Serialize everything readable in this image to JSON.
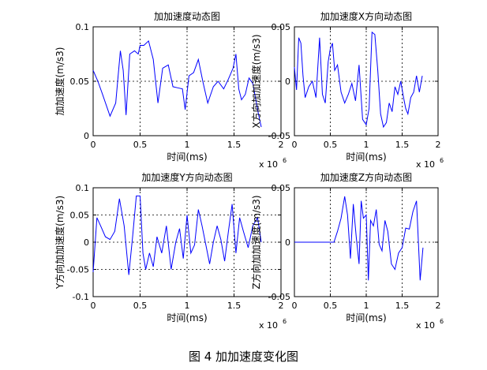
{
  "figure_caption": "图 4  加加速度变化图",
  "chart_data": [
    {
      "type": "line",
      "title": "加加速度动态图",
      "xlabel": "时间(ms)",
      "ylabel": "加加速度(m/s3)",
      "x_multiplier": "x 10",
      "x_multiplier_exp": "6",
      "xlim": [
        0,
        2
      ],
      "ylim": [
        0,
        0.1
      ],
      "xticks": [
        0,
        0.5,
        1,
        1.5,
        2
      ],
      "xtick_labels": [
        "0",
        "0.5",
        "1",
        "1.5",
        "2"
      ],
      "yticks": [
        0,
        0.05,
        0.1
      ],
      "ytick_labels": [
        "0",
        "0.05",
        "0.1"
      ],
      "grid_x": [
        0.5,
        1,
        1.5
      ],
      "grid_y": [
        0.05
      ],
      "line_color": "#0000ff",
      "series": [
        {
          "x": [
            0,
            0.05,
            0.1,
            0.18,
            0.24,
            0.29,
            0.32,
            0.35,
            0.39,
            0.44,
            0.48,
            0.5,
            0.54,
            0.59,
            0.64,
            0.69,
            0.74,
            0.8,
            0.85,
            0.9,
            0.95,
            0.98,
            1.02,
            1.07,
            1.12,
            1.17,
            1.22,
            1.28,
            1.33,
            1.39,
            1.44,
            1.49,
            1.52,
            1.55,
            1.58,
            1.62,
            1.66,
            1.7,
            1.76,
            1.79
          ],
          "y": [
            0.06,
            0.05,
            0.038,
            0.018,
            0.03,
            0.078,
            0.06,
            0.019,
            0.075,
            0.078,
            0.075,
            0.083,
            0.083,
            0.087,
            0.07,
            0.03,
            0.062,
            0.065,
            0.045,
            0.044,
            0.043,
            0.024,
            0.055,
            0.058,
            0.07,
            0.049,
            0.03,
            0.045,
            0.05,
            0.043,
            0.052,
            0.062,
            0.075,
            0.043,
            0.033,
            0.038,
            0.053,
            0.048,
            0.02,
            0.008
          ]
        }
      ]
    },
    {
      "type": "line",
      "title": "加加速度X方向动态图",
      "xlabel": "时间(ms)",
      "ylabel": "X方向加加速度(m/s3)",
      "x_multiplier": "x 10",
      "x_multiplier_exp": "6",
      "xlim": [
        0,
        2
      ],
      "ylim": [
        -0.05,
        0.05
      ],
      "xticks": [
        0,
        0.5,
        1,
        1.5,
        2
      ],
      "xtick_labels": [
        "0",
        "0.5",
        "1",
        "1.5",
        "2"
      ],
      "yticks": [
        -0.05,
        0,
        0.05
      ],
      "ytick_labels": [
        "-0.05",
        "0",
        "0.05"
      ],
      "grid_x": [
        0.5,
        1,
        1.5
      ],
      "grid_y": [
        0
      ],
      "line_color": "#0000ff",
      "series": [
        {
          "x": [
            0,
            0.03,
            0.06,
            0.09,
            0.12,
            0.15,
            0.2,
            0.25,
            0.3,
            0.35,
            0.39,
            0.43,
            0.47,
            0.5,
            0.53,
            0.56,
            0.6,
            0.65,
            0.7,
            0.75,
            0.8,
            0.85,
            0.9,
            0.95,
            1.0,
            1.04,
            1.08,
            1.12,
            1.16,
            1.2,
            1.24,
            1.28,
            1.32,
            1.36,
            1.4,
            1.44,
            1.48,
            1.52,
            1.55,
            1.58,
            1.62,
            1.66,
            1.7,
            1.74,
            1.78
          ],
          "y": [
            0.013,
            -0.008,
            0.04,
            0.035,
            0.005,
            -0.015,
            -0.005,
            0.0,
            -0.015,
            0.04,
            -0.012,
            -0.02,
            0.018,
            0.03,
            0.035,
            0.01,
            0.015,
            -0.01,
            -0.02,
            -0.012,
            -0.002,
            -0.018,
            0.015,
            -0.035,
            -0.04,
            -0.025,
            0.045,
            0.043,
            0.01,
            -0.03,
            -0.042,
            -0.038,
            -0.02,
            -0.028,
            -0.005,
            -0.012,
            0.0,
            -0.015,
            -0.025,
            -0.03,
            -0.015,
            -0.01,
            0.005,
            -0.01,
            0.005
          ]
        }
      ]
    },
    {
      "type": "line",
      "title": "加加速度Y方向动态图",
      "xlabel": "时间(ms)",
      "ylabel": "Y方向加加速度(m/s3)",
      "x_multiplier": "x 10",
      "x_multiplier_exp": "6",
      "xlim": [
        0,
        2
      ],
      "ylim": [
        -0.1,
        0.1
      ],
      "xticks": [
        0,
        0.5,
        1,
        1.5,
        2
      ],
      "xtick_labels": [
        "0",
        "0.5",
        "1",
        "1.5",
        "2"
      ],
      "yticks": [
        -0.1,
        -0.05,
        0,
        0.05,
        0.1
      ],
      "ytick_labels": [
        "-0.1",
        "-0.05",
        "0",
        "0.05",
        "0.1"
      ],
      "grid_x": [
        0.5,
        1,
        1.5
      ],
      "grid_y": [
        0.05,
        0,
        -0.05
      ],
      "line_color": "#0000ff",
      "series": [
        {
          "x": [
            0,
            0.04,
            0.08,
            0.13,
            0.18,
            0.23,
            0.28,
            0.33,
            0.38,
            0.42,
            0.46,
            0.5,
            0.53,
            0.56,
            0.6,
            0.64,
            0.68,
            0.73,
            0.78,
            0.83,
            0.88,
            0.92,
            0.96,
            1.0,
            1.04,
            1.08,
            1.12,
            1.16,
            1.2,
            1.24,
            1.28,
            1.32,
            1.36,
            1.4,
            1.44,
            1.48,
            1.52,
            1.56,
            1.6,
            1.65,
            1.7,
            1.75,
            1.79
          ],
          "y": [
            -0.055,
            0.045,
            0.03,
            0.01,
            0.005,
            0.02,
            0.08,
            0.03,
            -0.06,
            0.01,
            0.085,
            0.085,
            -0.02,
            -0.05,
            -0.02,
            -0.045,
            0.01,
            -0.02,
            0.03,
            -0.05,
            0.0,
            0.025,
            -0.03,
            0.05,
            -0.02,
            -0.005,
            0.06,
            0.03,
            -0.005,
            -0.04,
            0.0,
            0.03,
            0.005,
            -0.035,
            0.02,
            0.07,
            -0.02,
            0.045,
            0.02,
            -0.01,
            0.03,
            0.045,
            0.0
          ]
        }
      ]
    },
    {
      "type": "line",
      "title": "加加速度Z方向动态图",
      "xlabel": "时间(ms)",
      "ylabel": "Z方向加加速度(m/s3)",
      "x_multiplier": "x 10",
      "x_multiplier_exp": "6",
      "xlim": [
        0,
        2
      ],
      "ylim": [
        -0.05,
        0.05
      ],
      "xticks": [
        0,
        0.5,
        1,
        1.5,
        2
      ],
      "xtick_labels": [
        "0",
        "0.5",
        "1",
        "1.5",
        "2"
      ],
      "yticks": [
        -0.05,
        0,
        0.05
      ],
      "ytick_labels": [
        "-0.05",
        "0",
        "0.05"
      ],
      "grid_x": [
        0.5,
        1,
        1.5
      ],
      "grid_y": [
        0
      ],
      "line_color": "#0000ff",
      "series": [
        {
          "x": [
            0,
            0.2,
            0.4,
            0.55,
            0.6,
            0.65,
            0.7,
            0.74,
            0.78,
            0.82,
            0.86,
            0.9,
            0.93,
            0.96,
            1.0,
            1.03,
            1.06,
            1.1,
            1.14,
            1.18,
            1.22,
            1.26,
            1.3,
            1.35,
            1.4,
            1.45,
            1.5,
            1.55,
            1.6,
            1.65,
            1.7,
            1.75,
            1.79
          ],
          "y": [
            0,
            0,
            0,
            0,
            0.01,
            0.022,
            0.042,
            0.025,
            -0.015,
            0.035,
            0.005,
            -0.02,
            0.038,
            0.022,
            0.025,
            -0.035,
            0.02,
            0.015,
            0.03,
            -0.002,
            -0.008,
            0.02,
            0.01,
            -0.02,
            -0.025,
            -0.01,
            -0.005,
            0.013,
            0.012,
            0.028,
            0.038,
            -0.035,
            -0.005
          ]
        }
      ]
    }
  ]
}
